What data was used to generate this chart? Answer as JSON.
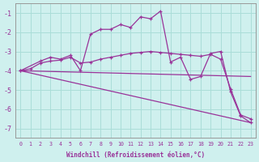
{
  "xlabel": "Windchill (Refroidissement éolien,°C)",
  "background_color": "#cff0ee",
  "grid_color": "#aaddd8",
  "line_color": "#993399",
  "xlim": [
    -0.5,
    23.5
  ],
  "ylim": [
    -7.5,
    -0.5
  ],
  "xticks": [
    0,
    1,
    2,
    3,
    4,
    5,
    6,
    7,
    8,
    9,
    10,
    11,
    12,
    13,
    14,
    15,
    16,
    17,
    18,
    19,
    20,
    21,
    22,
    23
  ],
  "yticks": [
    -1,
    -2,
    -3,
    -4,
    -5,
    -6,
    -7
  ],
  "lines": [
    {
      "x": [
        0,
        2,
        3,
        4,
        5,
        6,
        7,
        8,
        9,
        10,
        11,
        12,
        13,
        14,
        15,
        16,
        17,
        18,
        19,
        20,
        21,
        22,
        23
      ],
      "y": [
        -4.0,
        -3.5,
        -3.3,
        -3.4,
        -3.2,
        -4.0,
        -2.1,
        -1.85,
        -1.85,
        -1.6,
        -1.75,
        -1.2,
        -1.3,
        -0.9,
        -3.55,
        -3.3,
        -4.45,
        -4.3,
        -3.1,
        -3.0,
        -5.1,
        -6.35,
        -6.7
      ],
      "marker": true
    },
    {
      "x": [
        0,
        1,
        2,
        3,
        4,
        5,
        6,
        7,
        8,
        9,
        10,
        11,
        12,
        13,
        14,
        15,
        16,
        17,
        18,
        19,
        20,
        21,
        22,
        23
      ],
      "y": [
        -4.0,
        -3.9,
        -3.6,
        -3.5,
        -3.45,
        -3.3,
        -3.6,
        -3.55,
        -3.4,
        -3.3,
        -3.2,
        -3.1,
        -3.05,
        -3.0,
        -3.05,
        -3.1,
        -3.15,
        -3.2,
        -3.25,
        -3.15,
        -3.4,
        -4.95,
        -6.3,
        -6.5
      ],
      "marker": true
    },
    {
      "x": [
        0,
        23
      ],
      "y": [
        -4.0,
        -6.7
      ],
      "marker": false
    },
    {
      "x": [
        0,
        23
      ],
      "y": [
        -4.0,
        -4.3
      ],
      "marker": false
    }
  ]
}
